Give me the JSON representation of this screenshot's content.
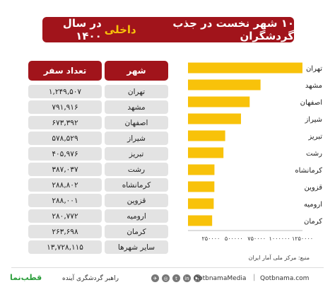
{
  "title": {
    "part1": "۱۰ شهر نخست در جذب گردشگران",
    "highlight": "داخلی",
    "part2": "در سال ۱۴۰۰"
  },
  "table": {
    "header_city": "شهر",
    "header_trips": "تعداد سفر",
    "rows": [
      {
        "city": "تهران",
        "value": "۱,۲۴۹,۵۰۷"
      },
      {
        "city": "مشهد",
        "value": "۷۹۱,۹۱۶"
      },
      {
        "city": "اصفهان",
        "value": "۶۷۳,۳۹۲"
      },
      {
        "city": "شیراز",
        "value": "۵۷۸,۵۲۹"
      },
      {
        "city": "تبریز",
        "value": "۴۰۵,۹۷۶"
      },
      {
        "city": "رشت",
        "value": "۳۸۷,۰۳۷"
      },
      {
        "city": "کرمانشاه",
        "value": "۲۸۸,۸۰۲"
      },
      {
        "city": "قزوین",
        "value": "۲۸۸,۰۰۱"
      },
      {
        "city": "ارومیه",
        "value": "۲۸۰,۷۷۲"
      },
      {
        "city": "کرمان",
        "value": "۲۶۳,۶۹۸"
      },
      {
        "city": "سایر شهرها",
        "value": "۱۳,۷۲۸,۱۱۵"
      }
    ]
  },
  "chart_data": {
    "type": "bar",
    "orientation": "horizontal",
    "categories": [
      "تهران",
      "مشهد",
      "اصفهان",
      "شیراز",
      "تبریز",
      "رشت",
      "کرمانشاه",
      "قزوین",
      "ارومیه",
      "کرمان"
    ],
    "values": [
      1249507,
      791916,
      673392,
      578529,
      405976,
      387037,
      288802,
      288001,
      280772,
      263698
    ],
    "xlim": [
      0,
      1250000
    ],
    "x_ticks": [
      250000,
      500000,
      750000,
      1000000,
      1250000
    ],
    "x_tick_labels": [
      "۲۵۰۰۰۰",
      "۵۰۰۰۰۰",
      "۷۵۰۰۰۰",
      "۱۰۰۰۰۰۰",
      "۱۲۵۰۰۰۰"
    ],
    "bar_color": "#f8c20a",
    "grid": false,
    "title": "",
    "xlabel": "",
    "ylabel": ""
  },
  "source": "منبع: مرکز ملی آمار ایران",
  "footer": {
    "brand": "قطب‌نما",
    "tagline": "راهبر گردشگری آینده",
    "handle": "QotbnamaMedia",
    "separator": "|",
    "website": "Qotbnama.com",
    "social_icons": [
      "telegram-icon",
      "instagram-icon",
      "twitter-icon",
      "linkedin-icon",
      "aparat-icon"
    ]
  },
  "colors": {
    "primary": "#a1141b",
    "accent": "#f8c20a",
    "row_bg": "#e3e3e3"
  }
}
